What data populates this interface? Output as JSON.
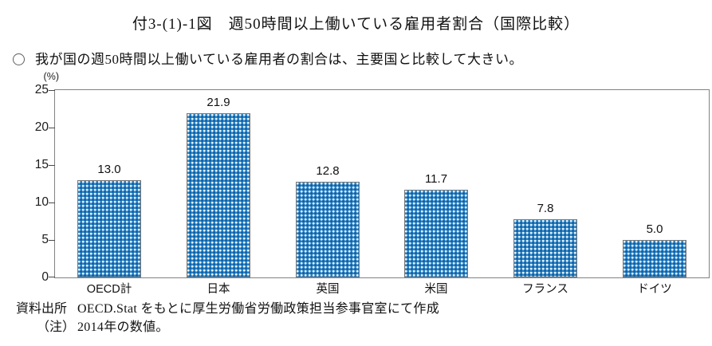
{
  "page": {
    "title": "付3-(1)-1図　週50時間以上働いている雇用者割合（国際比較）",
    "summary_bullet": "我が国の週50時間以上働いている雇用者の割合は、主要国と比較して大きい。"
  },
  "chart_data": {
    "type": "bar",
    "title": "週50時間以上働いている雇用者割合（国際比較）",
    "unit_label": "(%)",
    "categories": [
      "OECD計",
      "日本",
      "英国",
      "米国",
      "フランス",
      "ドイツ"
    ],
    "values": [
      13.0,
      21.9,
      12.8,
      11.7,
      7.8,
      5.0
    ],
    "value_labels": [
      "13.0",
      "21.9",
      "12.8",
      "11.7",
      "7.8",
      "5.0"
    ],
    "ylim": [
      0,
      25
    ],
    "y_ticks": [
      0,
      5,
      10,
      15,
      20,
      25
    ],
    "grid": false,
    "legend": "none",
    "bar_fill_color": "#2e86c4",
    "bar_pattern_dark_color": "#0c5ea8",
    "bar_border_color": "#787878",
    "axis_box_color": "#828282"
  },
  "footer": {
    "source_label": "資料出所",
    "source_text": "OECD.Stat をもとに厚生労働省労働政策担当参事官室にて作成",
    "note_label": "（注）",
    "note_text": "2014年の数値。"
  }
}
